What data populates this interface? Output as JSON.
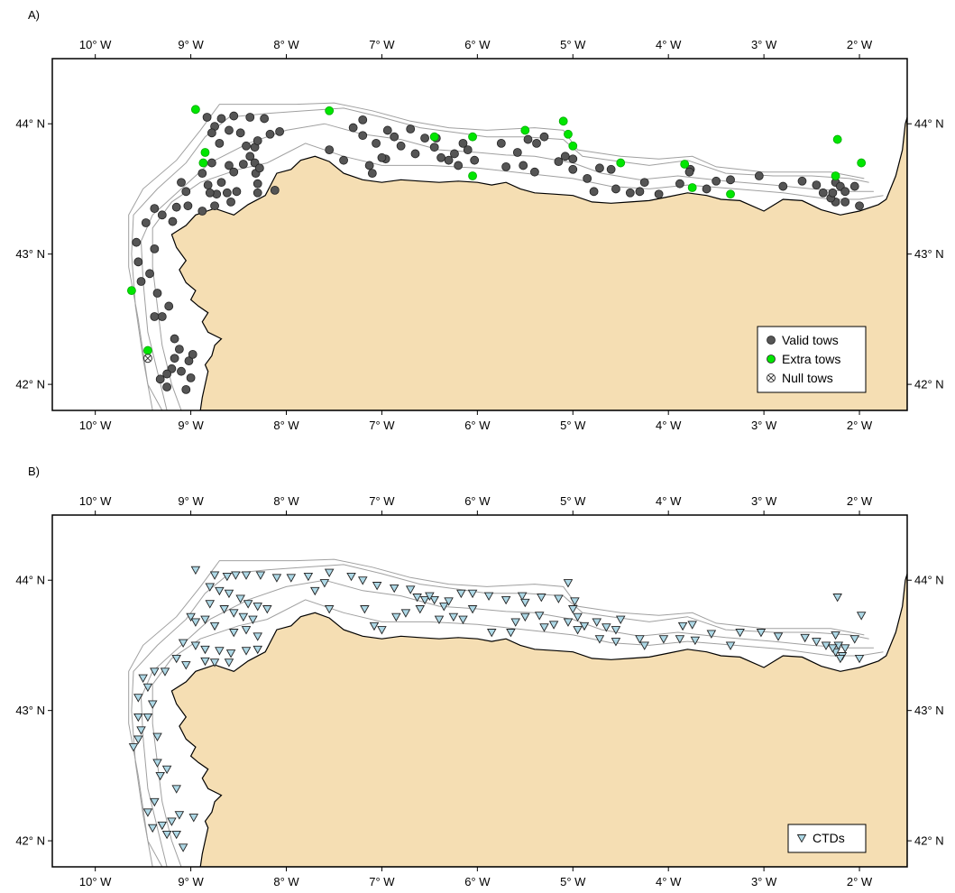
{
  "panels": [
    {
      "label": "A)",
      "legend": [
        {
          "symbol": "circle",
          "fill": "#555555",
          "text": "Valid tows"
        },
        {
          "symbol": "circle",
          "fill": "#00e600",
          "text": "Extra tows"
        },
        {
          "symbol": "crossed-circle",
          "fill": "none",
          "text": "Null tows"
        }
      ]
    },
    {
      "label": "B)",
      "legend": [
        {
          "symbol": "triangle-down",
          "fill": "#add8e6",
          "text": "CTDs"
        }
      ]
    }
  ],
  "axes": {
    "lon_ticks": [
      -10,
      -9,
      -8,
      -7,
      -6,
      -5,
      -4,
      -3,
      -2
    ],
    "lon_labels": [
      "10° W",
      "9° W",
      "8° W",
      "7° W",
      "6° W",
      "5° W",
      "4° W",
      "3° W",
      "2° W"
    ],
    "lat_ticks": [
      42,
      43,
      44
    ],
    "lat_labels": [
      "42° N",
      "43° N",
      "44° N"
    ],
    "lon_range": [
      -10.45,
      -1.5
    ],
    "lat_range": [
      41.8,
      44.5
    ]
  },
  "colors": {
    "land": "#f5deb3",
    "sea": "#ffffff",
    "coast": "#000000",
    "isobath": "#a0a0a0",
    "valid": "#555555",
    "extra": "#00e600",
    "ctd": "#add8e6"
  },
  "chart_data": {
    "type": "map",
    "valid_tows": [
      [
        -8.83,
        44.05
      ],
      [
        -8.68,
        44.04
      ],
      [
        -8.55,
        44.06
      ],
      [
        -8.38,
        44.05
      ],
      [
        -8.17,
        43.92
      ],
      [
        -8.07,
        43.94
      ],
      [
        -8.23,
        44.04
      ],
      [
        -8.75,
        43.98
      ],
      [
        -8.78,
        43.93
      ],
      [
        -8.6,
        43.95
      ],
      [
        -8.48,
        43.93
      ],
      [
        -8.7,
        43.85
      ],
      [
        -8.42,
        43.83
      ],
      [
        -8.33,
        43.82
      ],
      [
        -8.3,
        43.87
      ],
      [
        -8.38,
        43.75
      ],
      [
        -8.88,
        43.62
      ],
      [
        -8.78,
        43.7
      ],
      [
        -8.6,
        43.68
      ],
      [
        -8.55,
        43.63
      ],
      [
        -8.45,
        43.69
      ],
      [
        -8.33,
        43.7
      ],
      [
        -8.32,
        43.62
      ],
      [
        -8.28,
        43.66
      ],
      [
        -8.82,
        43.53
      ],
      [
        -8.68,
        43.55
      ],
      [
        -8.52,
        43.48
      ],
      [
        -8.62,
        43.47
      ],
      [
        -8.73,
        43.46
      ],
      [
        -8.8,
        43.47
      ],
      [
        -8.3,
        43.54
      ],
      [
        -8.3,
        43.47
      ],
      [
        -8.12,
        43.49
      ],
      [
        -8.58,
        43.4
      ],
      [
        -8.88,
        43.33
      ],
      [
        -8.75,
        43.37
      ],
      [
        -9.05,
        43.48
      ],
      [
        -9.1,
        43.55
      ],
      [
        -9.15,
        43.36
      ],
      [
        -9.03,
        43.37
      ],
      [
        -9.3,
        43.3
      ],
      [
        -9.19,
        43.25
      ],
      [
        -9.47,
        43.24
      ],
      [
        -9.38,
        43.35
      ],
      [
        -9.57,
        43.09
      ],
      [
        -9.38,
        43.04
      ],
      [
        -9.43,
        42.85
      ],
      [
        -9.55,
        42.94
      ],
      [
        -9.52,
        42.79
      ],
      [
        -9.35,
        42.7
      ],
      [
        -9.23,
        42.6
      ],
      [
        -9.3,
        42.52
      ],
      [
        -9.38,
        42.52
      ],
      [
        -9.17,
        42.35
      ],
      [
        -9.12,
        42.27
      ],
      [
        -9.02,
        42.18
      ],
      [
        -8.98,
        42.23
      ],
      [
        -9.17,
        42.2
      ],
      [
        -9.2,
        42.12
      ],
      [
        -9.1,
        42.1
      ],
      [
        -9.0,
        42.05
      ],
      [
        -9.25,
        42.08
      ],
      [
        -9.32,
        42.04
      ],
      [
        -9.25,
        41.98
      ],
      [
        -9.05,
        41.96
      ],
      [
        -7.55,
        43.8
      ],
      [
        -7.3,
        43.97
      ],
      [
        -7.2,
        43.91
      ],
      [
        -7.06,
        43.85
      ],
      [
        -6.94,
        43.95
      ],
      [
        -6.87,
        43.9
      ],
      [
        -6.8,
        43.83
      ],
      [
        -6.96,
        43.73
      ],
      [
        -7.13,
        43.68
      ],
      [
        -7.1,
        43.62
      ],
      [
        -7.0,
        43.74
      ],
      [
        -7.2,
        44.03
      ],
      [
        -6.55,
        43.89
      ],
      [
        -6.45,
        43.82
      ],
      [
        -6.38,
        43.74
      ],
      [
        -6.3,
        43.72
      ],
      [
        -6.24,
        43.77
      ],
      [
        -6.1,
        43.8
      ],
      [
        -6.03,
        43.72
      ],
      [
        -6.2,
        43.68
      ],
      [
        -6.43,
        43.89
      ],
      [
        -6.7,
        43.96
      ],
      [
        -6.15,
        43.85
      ],
      [
        -5.75,
        43.85
      ],
      [
        -5.7,
        43.67
      ],
      [
        -5.58,
        43.78
      ],
      [
        -5.52,
        43.68
      ],
      [
        -5.4,
        43.63
      ],
      [
        -5.47,
        43.88
      ],
      [
        -5.38,
        43.85
      ],
      [
        -5.3,
        43.9
      ],
      [
        -5.08,
        43.75
      ],
      [
        -5.15,
        43.71
      ],
      [
        -5.0,
        43.73
      ],
      [
        -5.0,
        43.65
      ],
      [
        -4.85,
        43.58
      ],
      [
        -4.72,
        43.66
      ],
      [
        -4.78,
        43.48
      ],
      [
        -4.6,
        43.65
      ],
      [
        -4.55,
        43.5
      ],
      [
        -4.4,
        43.47
      ],
      [
        -4.3,
        43.48
      ],
      [
        -4.25,
        43.55
      ],
      [
        -4.1,
        43.46
      ],
      [
        -3.88,
        43.54
      ],
      [
        -3.77,
        43.65
      ],
      [
        -3.78,
        43.63
      ],
      [
        -3.6,
        43.5
      ],
      [
        -3.5,
        43.56
      ],
      [
        -3.35,
        43.57
      ],
      [
        -3.05,
        43.6
      ],
      [
        -2.8,
        43.52
      ],
      [
        -2.6,
        43.56
      ],
      [
        -2.45,
        43.53
      ],
      [
        -2.38,
        43.47
      ],
      [
        -2.25,
        43.55
      ],
      [
        -2.2,
        43.52
      ],
      [
        -2.15,
        43.48
      ],
      [
        -2.15,
        43.4
      ],
      [
        -2.25,
        43.4
      ],
      [
        -2.3,
        43.43
      ],
      [
        -2.05,
        43.52
      ],
      [
        -2.0,
        43.37
      ],
      [
        -2.28,
        43.47
      ],
      [
        -6.65,
        43.77
      ],
      [
        -7.4,
        43.72
      ]
    ],
    "extra_tows": [
      [
        -8.95,
        44.11
      ],
      [
        -8.85,
        43.78
      ],
      [
        -8.87,
        43.7
      ],
      [
        -7.55,
        44.1
      ],
      [
        -6.45,
        43.9
      ],
      [
        -6.05,
        43.9
      ],
      [
        -6.05,
        43.6
      ],
      [
        -5.5,
        43.95
      ],
      [
        -5.1,
        44.02
      ],
      [
        -5.05,
        43.92
      ],
      [
        -5.0,
        43.83
      ],
      [
        -4.5,
        43.7
      ],
      [
        -3.83,
        43.69
      ],
      [
        -3.75,
        43.51
      ],
      [
        -3.35,
        43.46
      ],
      [
        -2.25,
        43.6
      ],
      [
        -2.23,
        43.88
      ],
      [
        -1.98,
        43.7
      ],
      [
        -9.62,
        42.72
      ],
      [
        -9.45,
        42.26
      ]
    ],
    "null_tows": [
      [
        -9.45,
        42.2
      ]
    ],
    "ctds": [
      [
        -8.95,
        44.08
      ],
      [
        -8.75,
        44.04
      ],
      [
        -8.62,
        44.03
      ],
      [
        -8.53,
        44.04
      ],
      [
        -8.42,
        44.04
      ],
      [
        -8.27,
        44.04
      ],
      [
        -8.1,
        44.02
      ],
      [
        -7.95,
        44.02
      ],
      [
        -7.77,
        44.03
      ],
      [
        -7.55,
        44.06
      ],
      [
        -7.32,
        44.03
      ],
      [
        -7.2,
        44.0
      ],
      [
        -7.05,
        43.96
      ],
      [
        -6.87,
        43.94
      ],
      [
        -6.7,
        43.93
      ],
      [
        -6.63,
        43.87
      ],
      [
        -6.55,
        43.85
      ],
      [
        -6.45,
        43.85
      ],
      [
        -6.17,
        43.9
      ],
      [
        -6.05,
        43.9
      ],
      [
        -5.88,
        43.88
      ],
      [
        -5.7,
        43.85
      ],
      [
        -5.53,
        43.88
      ],
      [
        -5.5,
        43.83
      ],
      [
        -5.33,
        43.87
      ],
      [
        -5.15,
        43.86
      ],
      [
        -5.05,
        43.98
      ],
      [
        -4.98,
        43.84
      ],
      [
        -5.0,
        43.78
      ],
      [
        -4.95,
        43.72
      ],
      [
        -5.05,
        43.68
      ],
      [
        -5.2,
        43.66
      ],
      [
        -5.3,
        43.64
      ],
      [
        -5.5,
        43.72
      ],
      [
        -5.6,
        43.68
      ],
      [
        -5.35,
        43.73
      ],
      [
        -4.75,
        43.68
      ],
      [
        -4.65,
        43.64
      ],
      [
        -4.55,
        43.62
      ],
      [
        -4.5,
        43.7
      ],
      [
        -4.88,
        43.65
      ],
      [
        -4.95,
        43.62
      ],
      [
        -4.72,
        43.55
      ],
      [
        -4.55,
        43.53
      ],
      [
        -4.3,
        43.55
      ],
      [
        -4.25,
        43.5
      ],
      [
        -4.05,
        43.55
      ],
      [
        -3.88,
        43.55
      ],
      [
        -3.85,
        43.65
      ],
      [
        -3.75,
        43.66
      ],
      [
        -3.72,
        43.54
      ],
      [
        -3.55,
        43.59
      ],
      [
        -3.35,
        43.5
      ],
      [
        -3.25,
        43.6
      ],
      [
        -3.03,
        43.6
      ],
      [
        -2.85,
        43.57
      ],
      [
        -2.57,
        43.56
      ],
      [
        -2.45,
        43.53
      ],
      [
        -2.35,
        43.5
      ],
      [
        -2.25,
        43.58
      ],
      [
        -2.22,
        43.5
      ],
      [
        -2.15,
        43.48
      ],
      [
        -2.18,
        43.42
      ],
      [
        -2.25,
        43.45
      ],
      [
        -2.2,
        43.4
      ],
      [
        -2.0,
        43.4
      ],
      [
        -2.05,
        43.55
      ],
      [
        -1.98,
        43.73
      ],
      [
        -2.23,
        43.87
      ],
      [
        -2.28,
        43.48
      ],
      [
        -8.8,
        43.95
      ],
      [
        -8.7,
        43.92
      ],
      [
        -8.6,
        43.9
      ],
      [
        -8.48,
        43.86
      ],
      [
        -8.4,
        43.82
      ],
      [
        -8.3,
        43.8
      ],
      [
        -8.2,
        43.78
      ],
      [
        -8.55,
        43.75
      ],
      [
        -8.45,
        43.72
      ],
      [
        -8.35,
        43.7
      ],
      [
        -8.8,
        43.82
      ],
      [
        -8.65,
        43.78
      ],
      [
        -9.0,
        43.72
      ],
      [
        -8.95,
        43.68
      ],
      [
        -8.85,
        43.7
      ],
      [
        -8.75,
        43.65
      ],
      [
        -8.55,
        43.6
      ],
      [
        -8.42,
        43.62
      ],
      [
        -8.3,
        43.57
      ],
      [
        -9.08,
        43.52
      ],
      [
        -8.95,
        43.5
      ],
      [
        -8.85,
        43.47
      ],
      [
        -8.7,
        43.46
      ],
      [
        -8.58,
        43.44
      ],
      [
        -8.42,
        43.46
      ],
      [
        -8.3,
        43.47
      ],
      [
        -8.85,
        43.38
      ],
      [
        -8.75,
        43.37
      ],
      [
        -8.6,
        43.37
      ],
      [
        -9.15,
        43.4
      ],
      [
        -9.05,
        43.35
      ],
      [
        -9.27,
        43.3
      ],
      [
        -9.38,
        43.3
      ],
      [
        -9.5,
        43.25
      ],
      [
        -9.45,
        43.18
      ],
      [
        -9.55,
        43.1
      ],
      [
        -9.4,
        43.05
      ],
      [
        -9.45,
        42.95
      ],
      [
        -9.55,
        42.95
      ],
      [
        -9.52,
        42.85
      ],
      [
        -9.35,
        42.8
      ],
      [
        -9.55,
        42.78
      ],
      [
        -9.6,
        42.72
      ],
      [
        -9.35,
        42.6
      ],
      [
        -9.25,
        42.55
      ],
      [
        -9.32,
        42.5
      ],
      [
        -9.15,
        42.4
      ],
      [
        -9.38,
        42.3
      ],
      [
        -9.45,
        42.22
      ],
      [
        -9.2,
        42.15
      ],
      [
        -9.12,
        42.2
      ],
      [
        -9.3,
        42.12
      ],
      [
        -9.25,
        42.05
      ],
      [
        -9.15,
        42.05
      ],
      [
        -9.08,
        41.95
      ],
      [
        -8.97,
        42.18
      ],
      [
        -9.4,
        42.1
      ],
      [
        -7.18,
        43.78
      ],
      [
        -7.08,
        43.65
      ],
      [
        -7.0,
        43.62
      ],
      [
        -6.85,
        43.72
      ],
      [
        -6.75,
        43.75
      ],
      [
        -6.6,
        43.78
      ],
      [
        -6.4,
        43.7
      ],
      [
        -6.25,
        43.72
      ],
      [
        -6.15,
        43.7
      ],
      [
        -6.35,
        43.8
      ],
      [
        -7.55,
        43.78
      ],
      [
        -7.7,
        43.92
      ],
      [
        -7.6,
        43.98
      ],
      [
        -6.3,
        43.84
      ],
      [
        -6.5,
        43.88
      ],
      [
        -5.65,
        43.6
      ],
      [
        -5.85,
        43.6
      ],
      [
        -6.05,
        43.78
      ]
    ]
  }
}
